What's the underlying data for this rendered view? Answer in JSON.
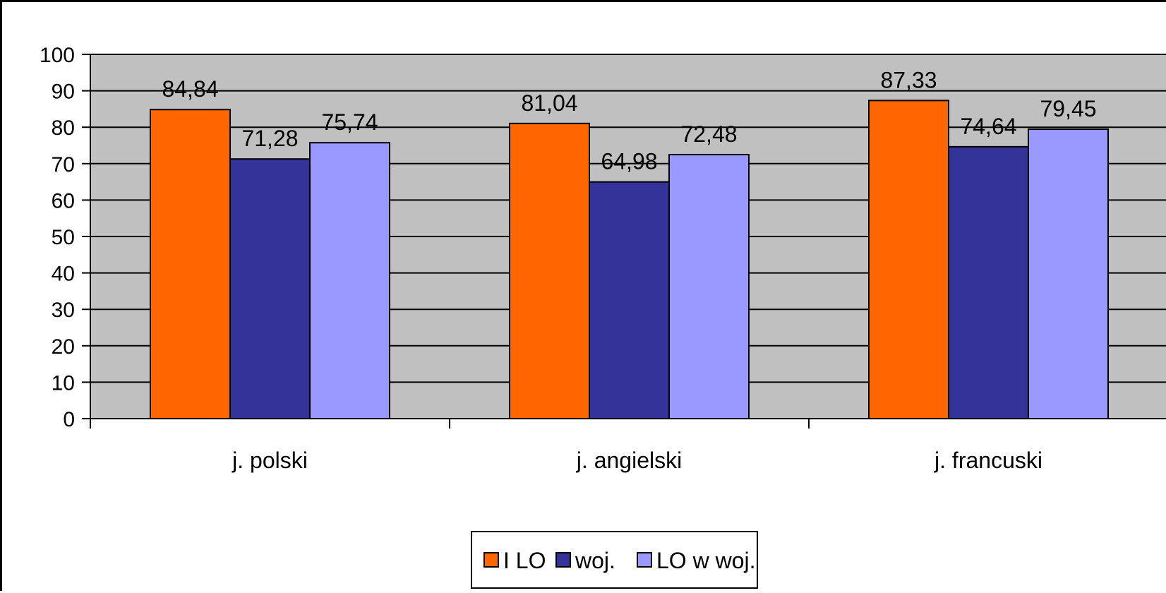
{
  "chart_data": {
    "type": "bar",
    "categories": [
      "j. polski",
      "j. angielski",
      "j. francuski"
    ],
    "series": [
      {
        "name": "I LO",
        "color": "#ff6600",
        "values": [
          84.84,
          81.04,
          87.33
        ],
        "labels": [
          "84,84",
          "81,04",
          "87,33"
        ]
      },
      {
        "name": "woj.",
        "color": "#333399",
        "values": [
          71.28,
          64.98,
          74.64
        ],
        "labels": [
          "71,28",
          "64,98",
          "74,64"
        ]
      },
      {
        "name": "LO w woj.",
        "color": "#9999ff",
        "values": [
          75.74,
          72.48,
          79.45
        ],
        "labels": [
          "75,74",
          "72,48",
          "79,45"
        ]
      }
    ],
    "ylim": [
      0,
      100
    ],
    "yticks": [
      "0",
      "10",
      "20",
      "30",
      "40",
      "50",
      "60",
      "70",
      "80",
      "90",
      "100"
    ],
    "plot_background": "#c0c0c0",
    "grid": true,
    "legend_position": "bottom",
    "title": "",
    "xlabel": "",
    "ylabel": ""
  }
}
